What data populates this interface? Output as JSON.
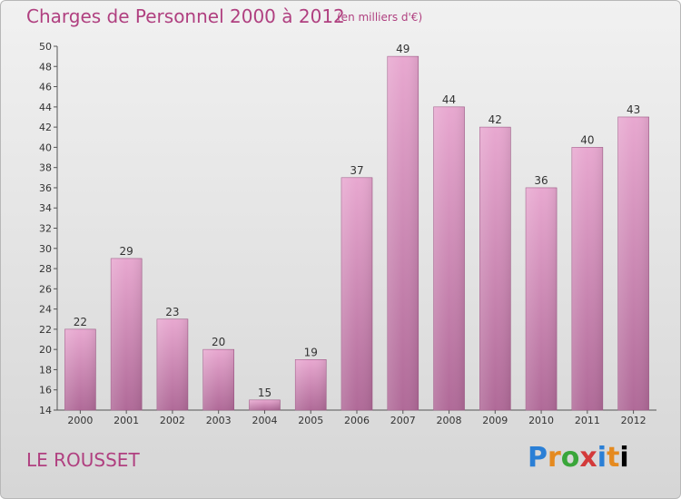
{
  "header": {
    "title": "Charges de Personnel 2000 à 2012",
    "subtitle": "(en milliers d'€)"
  },
  "footer": {
    "location": "LE ROUSSET",
    "logo_text": "Proxiti"
  },
  "colors": {
    "bar_top": "#e8a8d0",
    "bar_bottom": "#b06a98",
    "text_accent": "#b04080"
  },
  "chart_data": {
    "type": "bar",
    "title": "Charges de Personnel 2000 à 2012",
    "subtitle": "(en milliers d'€)",
    "xlabel": "",
    "ylabel": "",
    "categories": [
      "2000",
      "2001",
      "2002",
      "2003",
      "2004",
      "2005",
      "2006",
      "2007",
      "2008",
      "2009",
      "2010",
      "2011",
      "2012"
    ],
    "values": [
      22,
      29,
      23,
      20,
      15,
      19,
      37,
      49,
      44,
      42,
      36,
      40,
      43
    ],
    "ylim": [
      14,
      50
    ],
    "yticks": [
      14,
      16,
      18,
      20,
      22,
      24,
      26,
      28,
      30,
      32,
      34,
      36,
      38,
      40,
      42,
      44,
      46,
      48,
      50
    ],
    "grid": false,
    "legend": "none"
  }
}
